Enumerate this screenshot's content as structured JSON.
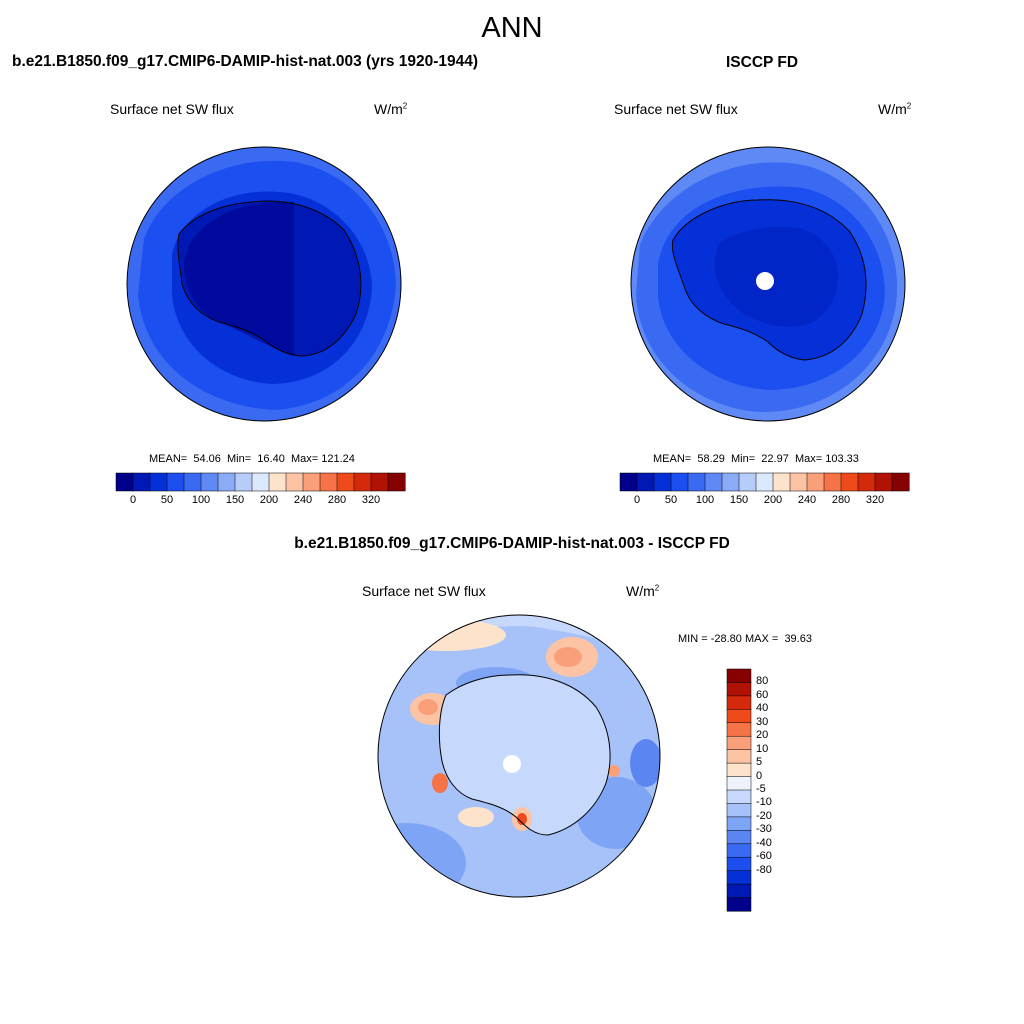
{
  "figure": {
    "season": "ANN",
    "variable": "Surface net SW flux",
    "units_base": "W/m",
    "units_exp": "2"
  },
  "panels": {
    "model": {
      "title": "b.e21.B1850.f09_g17.CMIP6-DAMIP-hist-nat.003 (yrs 1920-1944)",
      "stats_mean_label": "MEAN=",
      "mean": "54.06",
      "stats_min_label": "Min=",
      "min": "16.40",
      "stats_max_label": "Max=",
      "max": "121.24"
    },
    "obs": {
      "title": "ISCCP FD",
      "stats_mean_label": "MEAN=",
      "mean": "58.29",
      "stats_min_label": "Min=",
      "min": "22.97",
      "stats_max_label": "Max=",
      "max": "103.33"
    },
    "diff": {
      "title": "b.e21.B1850.f09_g17.CMIP6-DAMIP-hist-nat.003 - ISCCP FD",
      "stats_min_label": "MIN =",
      "min": "-28.80",
      "stats_max_label": "MAX =",
      "max": "39.63"
    }
  },
  "colorbars": {
    "abs": {
      "colors": [
        "#00008a",
        "#0019b4",
        "#0530d8",
        "#1c4ff0",
        "#3a6af2",
        "#5f8af5",
        "#8cabf7",
        "#b6cdfa",
        "#dce9fc",
        "#fde3cc",
        "#fcc4a4",
        "#f9a07b",
        "#f57346",
        "#ef4a1c",
        "#d42a0b",
        "#b01306",
        "#850000"
      ],
      "ticks": [
        "0",
        "50",
        "100",
        "150",
        "200",
        "240",
        "280",
        "320"
      ]
    },
    "diff": {
      "colors_top_to_bottom": [
        "#850000",
        "#b01306",
        "#d42a0b",
        "#ef4a1c",
        "#f57346",
        "#f9a07b",
        "#fcc4a4",
        "#fde3cc",
        "#eef3fb",
        "#c6d8fb",
        "#a6c2f9",
        "#7ea4f5",
        "#5b86f2",
        "#3a6af2",
        "#1c4ff0",
        "#0530d8",
        "#0019b4",
        "#00008a"
      ],
      "ticks": [
        "80",
        "60",
        "40",
        "30",
        "20",
        "10",
        "5",
        "0",
        "-5",
        "-10",
        "-20",
        "-30",
        "-40",
        "-60",
        "-80"
      ]
    }
  }
}
